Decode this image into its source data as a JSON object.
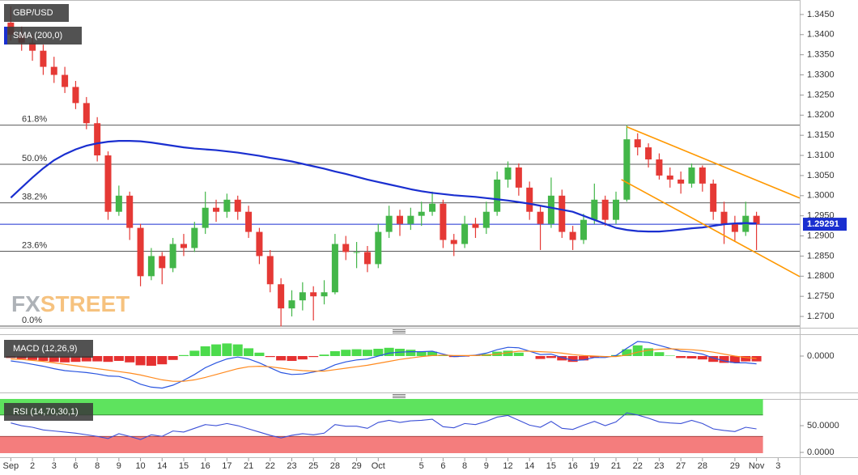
{
  "chart_data": [
    {
      "type": "candlestick",
      "xlim": [
        -1,
        73
      ],
      "xticks": [
        {
          "value": 0,
          "label": "Sep"
        },
        {
          "value": 2,
          "label": "2"
        },
        {
          "value": 4,
          "label": "3"
        },
        {
          "value": 6,
          "label": "6"
        },
        {
          "value": 8,
          "label": "8"
        },
        {
          "value": 10,
          "label": "9"
        },
        {
          "value": 12,
          "label": "10"
        },
        {
          "value": 14,
          "label": "14"
        },
        {
          "value": 16,
          "label": "15"
        },
        {
          "value": 18,
          "label": "16"
        },
        {
          "value": 20,
          "label": "17"
        },
        {
          "value": 22,
          "label": "21"
        },
        {
          "value": 24,
          "label": "22"
        },
        {
          "value": 26,
          "label": "23"
        },
        {
          "value": 28,
          "label": "25"
        },
        {
          "value": 30,
          "label": "28"
        },
        {
          "value": 32,
          "label": "29"
        },
        {
          "value": 34,
          "label": "Oct"
        },
        {
          "value": 38,
          "label": "5"
        },
        {
          "value": 40,
          "label": "6"
        },
        {
          "value": 42,
          "label": "8"
        },
        {
          "value": 44,
          "label": "9"
        },
        {
          "value": 46,
          "label": "12"
        },
        {
          "value": 48,
          "label": "14"
        },
        {
          "value": 50,
          "label": "15"
        },
        {
          "value": 52,
          "label": "16"
        },
        {
          "value": 54,
          "label": "19"
        },
        {
          "value": 56,
          "label": "21"
        },
        {
          "value": 58,
          "label": "22"
        },
        {
          "value": 60,
          "label": "23"
        },
        {
          "value": 62,
          "label": "27"
        },
        {
          "value": 64,
          "label": "28"
        },
        {
          "value": 67,
          "label": "29"
        },
        {
          "value": 69,
          "label": "Nov"
        },
        {
          "value": 71,
          "label": "3"
        }
      ],
      "ylim": [
        1.2672,
        1.3486
      ],
      "yticks": [
        {
          "value": 1.27,
          "label": "1.2700"
        },
        {
          "value": 1.275,
          "label": "1.2750"
        },
        {
          "value": 1.28,
          "label": "1.2800"
        },
        {
          "value": 1.285,
          "label": "1.2850"
        },
        {
          "value": 1.29,
          "label": "1.2900"
        },
        {
          "value": 1.295,
          "label": "1.2950"
        },
        {
          "value": 1.3,
          "label": "1.3000"
        },
        {
          "value": 1.305,
          "label": "1.3050"
        },
        {
          "value": 1.31,
          "label": "1.3100"
        },
        {
          "value": 1.315,
          "label": "1.3150"
        },
        {
          "value": 1.32,
          "label": "1.3200"
        },
        {
          "value": 1.325,
          "label": "1.3250"
        },
        {
          "value": 1.33,
          "label": "1.3300"
        },
        {
          "value": 1.335,
          "label": "1.3350"
        },
        {
          "value": 1.34,
          "label": "1.3400"
        },
        {
          "value": 1.345,
          "label": "1.3450"
        }
      ],
      "series": [
        {
          "name": "GBP/USD",
          "type": "candlestick",
          "up_color": "#43b649",
          "down_color": "#e53935",
          "open": [
            1.343,
            1.34,
            1.338,
            1.336,
            1.332,
            1.33,
            1.327,
            1.323,
            1.318,
            1.31,
            1.296,
            1.3,
            1.292,
            1.28,
            1.285,
            1.282,
            1.288,
            1.287,
            1.292,
            1.297,
            1.296,
            1.299,
            1.296,
            1.291,
            1.285,
            1.278,
            1.272,
            1.274,
            1.276,
            1.275,
            1.276,
            1.288,
            1.286,
            1.286,
            1.283,
            1.291,
            1.295,
            1.293,
            1.295,
            1.296,
            1.298,
            1.289,
            1.288,
            1.293,
            1.292,
            1.296,
            1.304,
            1.307,
            1.302,
            1.296,
            1.293,
            1.3,
            1.291,
            1.289,
            1.294,
            1.299,
            1.294,
            1.299,
            1.314,
            1.312,
            1.309,
            1.305,
            1.304,
            1.303,
            1.307,
            1.303,
            1.296,
            1.293,
            1.291,
            1.295
          ],
          "high": [
            1.347,
            1.342,
            1.34,
            1.3375,
            1.3345,
            1.332,
            1.3285,
            1.3245,
            1.3195,
            1.311,
            1.3025,
            1.301,
            1.293,
            1.287,
            1.286,
            1.2895,
            1.2905,
            1.2935,
            1.301,
            1.299,
            1.3005,
            1.3,
            1.2975,
            1.292,
            1.2865,
            1.2795,
            1.2765,
            1.2785,
            1.2775,
            1.279,
            1.2905,
            1.29,
            1.2885,
            1.2875,
            1.293,
            1.2975,
            1.2965,
            1.297,
            1.2985,
            1.301,
            1.299,
            1.2905,
            1.295,
            1.2945,
            1.2985,
            1.306,
            1.3085,
            1.308,
            1.3035,
            1.2975,
            1.3045,
            1.3015,
            1.2925,
            1.2955,
            1.303,
            1.3,
            1.301,
            1.3175,
            1.3155,
            1.313,
            1.3105,
            1.307,
            1.306,
            1.308,
            1.3075,
            1.304,
            1.2985,
            1.295,
            1.2985,
            1.296
          ],
          "low": [
            1.3385,
            1.336,
            1.3335,
            1.33,
            1.328,
            1.3255,
            1.3215,
            1.3165,
            1.3085,
            1.294,
            1.295,
            1.289,
            1.2775,
            1.279,
            1.278,
            1.281,
            1.285,
            1.286,
            1.2905,
            1.2935,
            1.2945,
            1.294,
            1.2895,
            1.283,
            1.276,
            1.2675,
            1.27,
            1.2715,
            1.269,
            1.273,
            1.2755,
            1.284,
            1.282,
            1.281,
            1.282,
            1.2895,
            1.29,
            1.2915,
            1.2925,
            1.295,
            1.287,
            1.285,
            1.287,
            1.2895,
            1.2905,
            1.295,
            1.302,
            1.3,
            1.294,
            1.2865,
            1.292,
            1.2895,
            1.2865,
            1.288,
            1.293,
            1.2925,
            1.293,
            1.2985,
            1.31,
            1.307,
            1.304,
            1.302,
            1.3005,
            1.302,
            1.301,
            1.294,
            1.288,
            1.2885,
            1.29,
            1.2865
          ],
          "close": [
            1.34,
            1.338,
            1.336,
            1.332,
            1.33,
            1.327,
            1.323,
            1.318,
            1.31,
            1.296,
            1.3,
            1.292,
            1.28,
            1.285,
            1.282,
            1.288,
            1.287,
            1.292,
            1.297,
            1.296,
            1.299,
            1.296,
            1.291,
            1.285,
            1.278,
            1.272,
            1.274,
            1.276,
            1.275,
            1.276,
            1.288,
            1.286,
            1.286,
            1.283,
            1.291,
            1.295,
            1.293,
            1.295,
            1.296,
            1.298,
            1.289,
            1.288,
            1.293,
            1.292,
            1.296,
            1.304,
            1.307,
            1.302,
            1.296,
            1.293,
            1.3,
            1.291,
            1.289,
            1.294,
            1.299,
            1.294,
            1.299,
            1.314,
            1.312,
            1.309,
            1.305,
            1.304,
            1.303,
            1.307,
            1.303,
            1.296,
            1.293,
            1.291,
            1.295,
            1.2929
          ]
        },
        {
          "name": "SMA (200,0)",
          "type": "line",
          "color": "#1a2fd0",
          "values": [
            1.2995,
            1.302,
            1.3045,
            1.3068,
            1.3088,
            1.3103,
            1.3115,
            1.3124,
            1.313,
            1.3134,
            1.3136,
            1.3136,
            1.3135,
            1.3132,
            1.3128,
            1.3124,
            1.312,
            1.3117,
            1.3115,
            1.3113,
            1.311,
            1.3107,
            1.3103,
            1.3099,
            1.3094,
            1.309,
            1.3085,
            1.3079,
            1.3073,
            1.3067,
            1.306,
            1.3054,
            1.3047,
            1.304,
            1.3034,
            1.3028,
            1.3022,
            1.3016,
            1.3011,
            1.3007,
            1.3004,
            1.3001,
            1.2999,
            1.2997,
            1.2994,
            1.2991,
            1.2988,
            1.2984,
            1.298,
            1.2975,
            1.297,
            1.2965,
            1.296,
            1.295,
            1.294,
            1.293,
            1.292,
            1.2915,
            1.2912,
            1.2911,
            1.2911,
            1.2913,
            1.2916,
            1.2919,
            1.2921,
            1.2925,
            1.2929,
            1.2931,
            1.2932,
            1.2931
          ]
        }
      ],
      "fibonacci": [
        {
          "label": "61.8%",
          "price": 1.3175
        },
        {
          "label": "50.0%",
          "price": 1.3078
        },
        {
          "label": "38.2%",
          "price": 1.2982
        },
        {
          "label": "23.6%",
          "price": 1.2862
        },
        {
          "label": "0.0%",
          "price": 1.2676
        }
      ],
      "channel": [
        {
          "x": [
            57,
            73
          ],
          "y": [
            1.3171,
            1.2994
          ]
        },
        {
          "x": [
            56.5,
            73
          ],
          "y": [
            1.304,
            1.2799
          ]
        }
      ],
      "channel_color": "#ff9800",
      "last_price": 1.29291,
      "last_price_color": "#1a2fd0",
      "watermark": [
        "FX",
        "STREET"
      ]
    },
    {
      "type": "macd",
      "title": "MACD (12,26,9)",
      "ylim": [
        -0.0075,
        0.0045
      ],
      "yticks": [
        {
          "value": 0,
          "label": "0.0000"
        }
      ],
      "series": [
        {
          "type": "line",
          "color": "#2a55e0",
          "values": [
            -0.001,
            -0.0013,
            -0.0017,
            -0.0021,
            -0.0026,
            -0.003,
            -0.0032,
            -0.0034,
            -0.0037,
            -0.0041,
            -0.0042,
            -0.0048,
            -0.0058,
            -0.0064,
            -0.0066,
            -0.006,
            -0.005,
            -0.0038,
            -0.0024,
            -0.0014,
            -0.0006,
            -0.0002,
            -0.0006,
            -0.0014,
            -0.0024,
            -0.0034,
            -0.0038,
            -0.0037,
            -0.0033,
            -0.0028,
            -0.0018,
            -0.0012,
            -0.0008,
            -0.0006,
            0,
            0.0006,
            0.0008,
            0.0009,
            0.0009,
            0.001,
            0.0004,
            -0.0001,
            0,
            0.0002,
            0.0006,
            0.0013,
            0.0018,
            0.0017,
            0.001,
            0.0003,
            0.0004,
            -0.0003,
            -0.0009,
            -0.0008,
            -0.0003,
            -0.0003,
            0.0001,
            0.0016,
            0.003,
            0.0028,
            0.0022,
            0.0016,
            0.001,
            0.0008,
            0.0004,
            -0.0004,
            -0.001,
            -0.0014,
            -0.0014,
            -0.0016
          ]
        },
        {
          "type": "line",
          "color": "#ff8a1f",
          "values": [
            -0.0006,
            -0.0007,
            -0.0009,
            -0.0011,
            -0.0014,
            -0.0017,
            -0.002,
            -0.0023,
            -0.0026,
            -0.0029,
            -0.0032,
            -0.0035,
            -0.0039,
            -0.0044,
            -0.0049,
            -0.0052,
            -0.0052,
            -0.0049,
            -0.0044,
            -0.0038,
            -0.0032,
            -0.0026,
            -0.0022,
            -0.0021,
            -0.0022,
            -0.0025,
            -0.0028,
            -0.003,
            -0.0031,
            -0.0031,
            -0.0028,
            -0.0025,
            -0.0022,
            -0.0019,
            -0.0015,
            -0.0011,
            -0.0007,
            -0.0004,
            -0.0001,
            0.0001,
            0.0002,
            0.0001,
            0.0001,
            0.0001,
            0.0002,
            0.0004,
            0.0007,
            0.001,
            0.001,
            0.0009,
            0.0008,
            0.0006,
            0.0003,
            0.0001,
            0,
            -0.0001,
            -0.0001,
            0.0002,
            0.0008,
            0.0012,
            0.0014,
            0.0015,
            0.0014,
            0.0013,
            0.0011,
            0.0008,
            0.0004,
            0,
            -0.0003,
            -0.0005
          ]
        },
        {
          "type": "bar",
          "up_color": "#4cdb4c",
          "down_color": "#e53030",
          "values": [
            -0.0004,
            -0.0006,
            -0.0008,
            -0.001,
            -0.0012,
            -0.0013,
            -0.0012,
            -0.0011,
            -0.0011,
            -0.0012,
            -0.001,
            -0.0013,
            -0.0019,
            -0.002,
            -0.0017,
            -0.0008,
            0.0002,
            0.0011,
            0.002,
            0.0024,
            0.0026,
            0.0024,
            0.0016,
            0.0007,
            -0.0002,
            -0.0009,
            -0.001,
            -0.0007,
            -0.0002,
            0.0003,
            0.001,
            0.0013,
            0.0014,
            0.0013,
            0.0015,
            0.0017,
            0.0015,
            0.0013,
            0.001,
            0.0009,
            0.0002,
            -0.0002,
            -0.0001,
            0.0001,
            0.0004,
            0.0009,
            0.0011,
            0.0007,
            0,
            -0.0006,
            -0.0004,
            -0.0009,
            -0.0012,
            -0.0009,
            -0.0003,
            -0.0002,
            0.0002,
            0.0014,
            0.0022,
            0.0016,
            0.0008,
            0.0001,
            -0.0004,
            -0.0005,
            -0.0007,
            -0.0012,
            -0.0014,
            -0.0014,
            -0.0011,
            -0.0011
          ]
        }
      ]
    },
    {
      "type": "rsi",
      "title": "RSI (14,70,30,1)",
      "ylim": [
        -9,
        100
      ],
      "yticks": [
        {
          "value": 50,
          "label": "50.0000"
        },
        {
          "value": 0,
          "label": "0.0000"
        }
      ],
      "levels": [
        70,
        30
      ],
      "level_colors": [
        "#5ee35e",
        "#f47d7d"
      ],
      "series": [
        {
          "type": "line",
          "color": "#3a4fd6",
          "values": [
            55,
            50,
            47,
            42,
            40,
            38,
            36,
            33,
            30,
            26,
            35,
            30,
            24,
            33,
            30,
            40,
            38,
            45,
            52,
            50,
            54,
            50,
            44,
            38,
            32,
            27,
            32,
            35,
            33,
            36,
            52,
            49,
            49,
            45,
            56,
            60,
            56,
            59,
            60,
            62,
            48,
            46,
            54,
            52,
            58,
            66,
            69,
            60,
            51,
            47,
            58,
            45,
            43,
            51,
            58,
            50,
            57,
            74,
            70,
            64,
            57,
            55,
            54,
            60,
            54,
            44,
            41,
            39,
            47,
            44
          ]
        }
      ]
    }
  ]
}
